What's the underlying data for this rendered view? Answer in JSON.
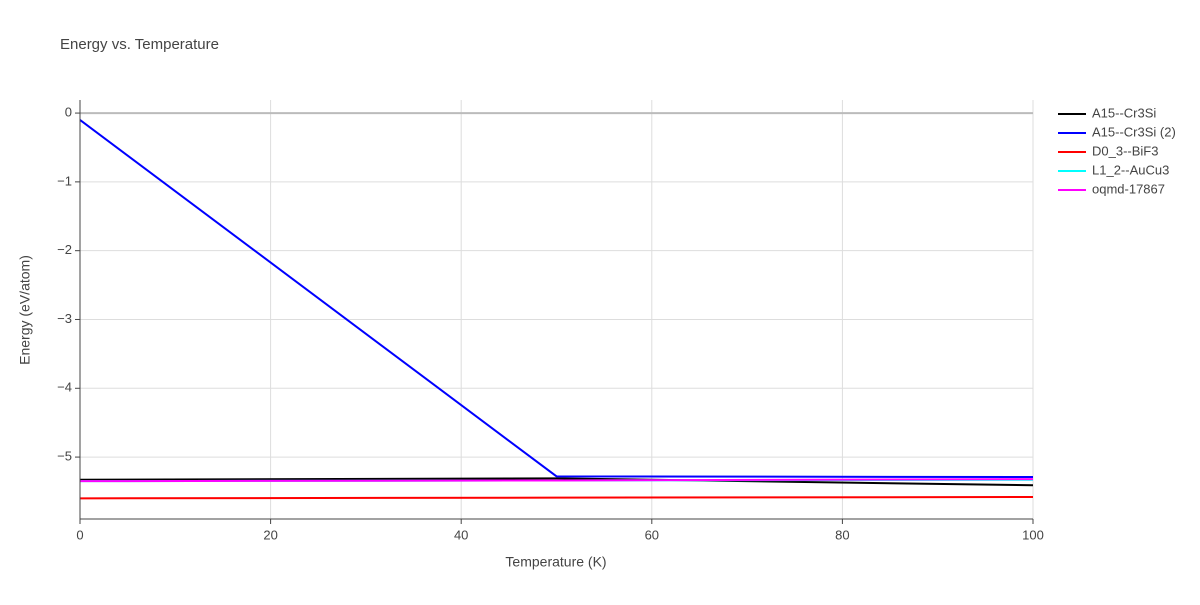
{
  "chart_data": {
    "type": "line",
    "title": "Energy vs. Temperature",
    "x_label": "Temperature (K)",
    "y_label": "Energy (eV/atom)",
    "x": [
      0,
      50,
      100
    ],
    "series": [
      {
        "name": "A15--Cr3Si",
        "color": "#000000",
        "values": [
          -5.33,
          -5.31,
          -5.41
        ]
      },
      {
        "name": "A15--Cr3Si (2)",
        "color": "#0000ff",
        "values": [
          -0.1,
          -5.28,
          -5.29
        ]
      },
      {
        "name": "D0_3--BiF3",
        "color": "#ff0000",
        "values": [
          -5.6,
          -5.59,
          -5.58
        ]
      },
      {
        "name": "L1_2--AuCu3",
        "color": "#00ffff",
        "values": [
          -5.35,
          -5.34,
          -5.33
        ]
      },
      {
        "name": "oqmd-17867",
        "color": "#ff00ff",
        "values": [
          -5.35,
          -5.34,
          -5.32
        ]
      }
    ],
    "xlim": [
      0,
      100
    ],
    "xticks": [
      0,
      20,
      40,
      60,
      80,
      100
    ],
    "ylim": [
      -5.9,
      0.19
    ],
    "yticks": [
      0,
      {
        "value": -1,
        "label": "−1"
      },
      {
        "value": -2,
        "label": "−2"
      },
      {
        "value": -3,
        "label": "−3"
      },
      {
        "value": -4,
        "label": "−4"
      },
      {
        "value": -5,
        "label": "−5"
      }
    ],
    "grid": true,
    "legend": "right"
  }
}
